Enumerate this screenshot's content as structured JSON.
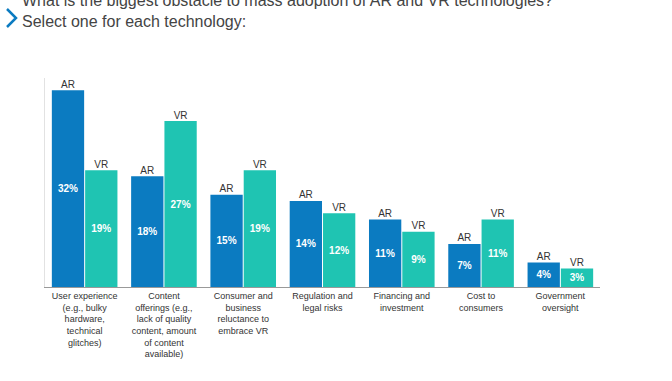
{
  "chart_data": {
    "type": "bar",
    "title": "What is the biggest obstacle to mass adoption of AR and VR technologies?",
    "subtitle": "Select one for each technology:",
    "categories": [
      "User experience (e.g., bulky hardware, technical glitches)",
      "Content offerings (e.g., lack of quality content, amount of content available)",
      "Consumer and business reluctance to embrace VR",
      "Regulation and legal risks",
      "Financing and investment",
      "Cost to consumers",
      "Government oversight"
    ],
    "series": [
      {
        "name": "AR",
        "color": "#0b7bc1",
        "values": [
          32,
          18,
          15,
          14,
          11,
          7,
          4
        ],
        "value_labels": [
          "32%",
          "18%",
          "15%",
          "14%",
          "11%",
          "7%",
          "4%"
        ]
      },
      {
        "name": "VR",
        "color": "#1fc4b2",
        "values": [
          19,
          27,
          19,
          12,
          9,
          11,
          3
        ],
        "value_labels": [
          "19%",
          "27%",
          "19%",
          "12%",
          "9%",
          "11%",
          "3%"
        ]
      }
    ],
    "ylim": [
      0,
      34
    ],
    "yticks": [],
    "grid": false,
    "data_labels": true,
    "tick_labels": "x"
  }
}
